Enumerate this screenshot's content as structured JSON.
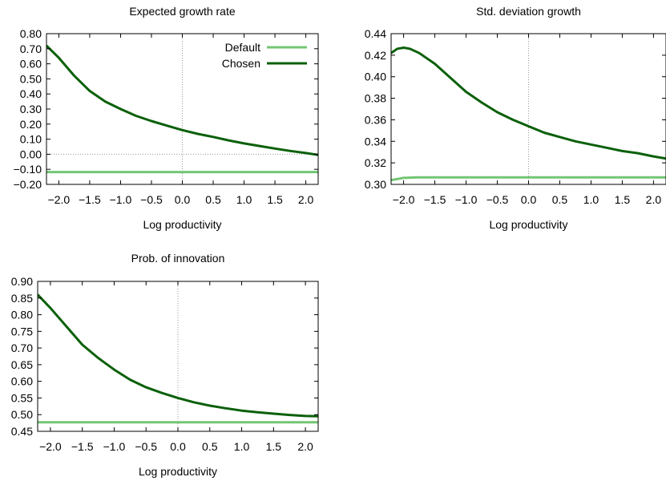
{
  "colors": {
    "default": "#73c673",
    "chosen": "#0b600b",
    "zero_line": "#999999"
  },
  "legend": [
    {
      "label": "Default",
      "series": "default"
    },
    {
      "label": "Chosen",
      "series": "chosen"
    }
  ],
  "chart_data": [
    {
      "type": "line",
      "title": "Expected growth rate",
      "xlabel": "Log productivity",
      "ylabel": "",
      "xlim": [
        -2.2,
        2.2
      ],
      "ylim": [
        -0.2,
        0.8
      ],
      "xticks": [
        "−2.0",
        "−1.5",
        "−1.0",
        "−0.5",
        "0.0",
        "0.5",
        "1.0",
        "1.5",
        "2.0"
      ],
      "yticks": [
        "0.80",
        "0.70",
        "0.60",
        "0.50",
        "0.40",
        "0.30",
        "0.20",
        "0.10",
        "0.00",
        "−0.10",
        "−0.20"
      ],
      "grid": false,
      "zero_lines": {
        "x": 0,
        "y": 0
      },
      "legend_position": "top-right",
      "series": [
        {
          "key": "default",
          "x": [
            -2.2,
            2.2
          ],
          "y": [
            -0.118,
            -0.118
          ]
        },
        {
          "key": "chosen",
          "x": [
            -2.2,
            -2.0,
            -1.75,
            -1.5,
            -1.25,
            -1.0,
            -0.75,
            -0.5,
            -0.25,
            0.0,
            0.25,
            0.5,
            0.75,
            1.0,
            1.25,
            1.5,
            1.75,
            2.0,
            2.2
          ],
          "y": [
            0.72,
            0.64,
            0.52,
            0.42,
            0.35,
            0.3,
            0.255,
            0.22,
            0.19,
            0.16,
            0.135,
            0.115,
            0.092,
            0.072,
            0.055,
            0.038,
            0.022,
            0.008,
            -0.005
          ]
        }
      ]
    },
    {
      "type": "line",
      "title": "Std. deviation growth",
      "xlabel": "Log productivity",
      "ylabel": "",
      "xlim": [
        -2.2,
        2.2
      ],
      "ylim": [
        0.3,
        0.44
      ],
      "xticks": [
        "−2.0",
        "−1.5",
        "−1.0",
        "−0.5",
        "0.0",
        "0.5",
        "1.0",
        "1.5",
        "2.0"
      ],
      "yticks": [
        "0.44",
        "0.42",
        "0.40",
        "0.38",
        "0.36",
        "0.34",
        "0.32",
        "0.30"
      ],
      "grid": false,
      "zero_lines": {
        "x": 0
      },
      "series": [
        {
          "key": "default",
          "x": [
            -2.2,
            -2.1,
            -2.0,
            -1.8,
            2.2
          ],
          "y": [
            0.304,
            0.305,
            0.306,
            0.3065,
            0.3065
          ]
        },
        {
          "key": "chosen",
          "x": [
            -2.2,
            -2.1,
            -2.0,
            -1.9,
            -1.75,
            -1.5,
            -1.25,
            -1.0,
            -0.75,
            -0.5,
            -0.25,
            0.0,
            0.25,
            0.5,
            0.75,
            1.0,
            1.25,
            1.5,
            1.75,
            2.0,
            2.2
          ],
          "y": [
            0.422,
            0.426,
            0.427,
            0.426,
            0.422,
            0.412,
            0.399,
            0.386,
            0.376,
            0.367,
            0.36,
            0.354,
            0.348,
            0.344,
            0.34,
            0.337,
            0.334,
            0.331,
            0.329,
            0.326,
            0.324
          ]
        }
      ]
    },
    {
      "type": "line",
      "title": "Prob. of innovation",
      "xlabel": "Log productivity",
      "ylabel": "",
      "xlim": [
        -2.2,
        2.2
      ],
      "ylim": [
        0.45,
        0.9
      ],
      "xticks": [
        "−2.0",
        "−1.5",
        "−1.0",
        "−0.5",
        "0.0",
        "0.5",
        "1.0",
        "1.5",
        "2.0"
      ],
      "yticks": [
        "0.90",
        "0.85",
        "0.80",
        "0.75",
        "0.70",
        "0.65",
        "0.60",
        "0.55",
        "0.50",
        "0.45"
      ],
      "grid": false,
      "zero_lines": {
        "x": 0
      },
      "series": [
        {
          "key": "default",
          "x": [
            -2.2,
            2.2
          ],
          "y": [
            0.477,
            0.477
          ]
        },
        {
          "key": "chosen",
          "x": [
            -2.2,
            -2.0,
            -1.75,
            -1.5,
            -1.25,
            -1.0,
            -0.75,
            -0.5,
            -0.25,
            0.0,
            0.25,
            0.5,
            0.75,
            1.0,
            1.25,
            1.5,
            1.75,
            2.0,
            2.2
          ],
          "y": [
            0.86,
            0.82,
            0.765,
            0.71,
            0.67,
            0.635,
            0.605,
            0.582,
            0.565,
            0.55,
            0.537,
            0.527,
            0.519,
            0.512,
            0.507,
            0.503,
            0.499,
            0.496,
            0.495
          ]
        }
      ]
    }
  ]
}
